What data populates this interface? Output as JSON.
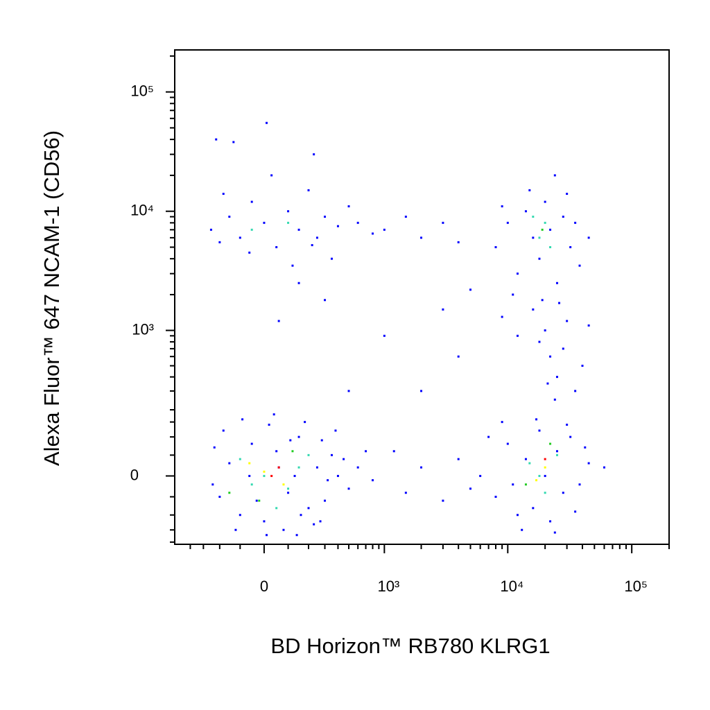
{
  "chart_data": {
    "type": "scatter",
    "xlabel": "BD Horizon™ RB780 KLRG1",
    "ylabel": "Alexa Fluor™ 647 NCAM-1 (CD56)",
    "xscale": "biexponential",
    "yscale": "biexponential",
    "xlim": [
      -550,
      200000
    ],
    "ylim": [
      -210,
      225000
    ],
    "xticks": [
      0,
      {
        "value": 1000,
        "label": "10³"
      },
      {
        "value": 10000,
        "label": "10⁴"
      },
      {
        "value": 100000,
        "label": "10⁵"
      }
    ],
    "yticks": [
      0,
      {
        "value": 1000,
        "label": "10³"
      },
      {
        "value": 10000,
        "label": "10⁴"
      },
      {
        "value": 100000,
        "label": "10⁵"
      }
    ],
    "xminorticks": [
      -400,
      -300,
      -200,
      -100,
      100,
      200,
      300,
      400,
      500,
      600,
      700,
      800,
      900,
      2000,
      3000,
      4000,
      5000,
      6000,
      7000,
      8000,
      9000,
      20000,
      30000,
      40000,
      50000,
      60000,
      70000,
      80000,
      90000,
      200000
    ],
    "yminorticks": [
      -200,
      -150,
      -100,
      -50,
      50,
      100,
      150,
      200,
      300,
      400,
      500,
      600,
      700,
      800,
      900,
      2000,
      3000,
      4000,
      5000,
      6000,
      7000,
      8000,
      9000,
      20000,
      30000,
      40000,
      50000,
      60000,
      70000,
      80000,
      90000,
      200000
    ],
    "series": [
      {
        "color": "#0000ff",
        "x": [
          -200,
          -150,
          -100,
          -50,
          0,
          50,
          100,
          150,
          200,
          250,
          300,
          350,
          400,
          -180,
          -120,
          -60,
          20,
          80,
          130,
          180,
          230,
          280,
          -230,
          -30,
          60,
          110,
          160,
          320,
          450,
          500,
          600,
          800,
          700,
          -90,
          10,
          380,
          -240,
          140,
          270,
          40,
          -250,
          -200,
          -150,
          -100,
          -50,
          0,
          50,
          100,
          150,
          200,
          250,
          300,
          350,
          400,
          500,
          -180,
          -60,
          30,
          120,
          220,
          -220,
          -130,
          10,
          230,
          600,
          800,
          1000,
          1500,
          2000,
          3000,
          4000,
          60,
          150,
          300,
          6000,
          8000,
          10000,
          12000,
          14000,
          16000,
          18000,
          20000,
          22000,
          25000,
          28000,
          32000,
          38000,
          45000,
          9000,
          13000,
          17000,
          24000,
          30000,
          7000,
          11000,
          35000,
          42000,
          5000,
          4000,
          3000,
          2000,
          1500,
          1200,
          60000,
          8000,
          10000,
          12000,
          14000,
          16000,
          18000,
          20000,
          22000,
          25000,
          28000,
          32000,
          38000,
          45000,
          15000,
          24000,
          11000,
          30000,
          35000,
          19000,
          9000,
          20000,
          22000,
          25000,
          18000,
          30000,
          35000,
          28000,
          16000,
          40000,
          24000,
          12000,
          9000,
          45000,
          21000,
          26000,
          2000,
          3000,
          1000,
          5000,
          500,
          4000
        ],
        "values": [
          -50,
          30,
          -100,
          80,
          -120,
          60,
          -40,
          100,
          -80,
          20,
          -60,
          50,
          0,
          120,
          -150,
          0,
          140,
          -150,
          0,
          150,
          -130,
          90,
          70,
          -60,
          20,
          90,
          -100,
          -10,
          40,
          -30,
          20,
          -10,
          60,
          160,
          -170,
          120,
          -20,
          -170,
          -120,
          180,
          7000,
          5500,
          9000,
          6000,
          12000,
          8000,
          5000,
          10000,
          7000,
          15000,
          6000,
          9000,
          4000,
          7500,
          11000,
          14000,
          4500,
          20000,
          3500,
          5200,
          40000,
          38000,
          55000,
          30000,
          8000,
          6500,
          7000,
          9000,
          6000,
          8000,
          5500,
          1200,
          2500,
          1800,
          0,
          -50,
          80,
          -100,
          40,
          -80,
          120,
          0,
          -120,
          60,
          -40,
          100,
          -20,
          30,
          150,
          -150,
          160,
          -160,
          140,
          100,
          -20,
          -90,
          70,
          -30,
          40,
          -60,
          20,
          -40,
          60,
          20,
          5000,
          8000,
          3000,
          10000,
          6000,
          4000,
          12000,
          7000,
          2500,
          9000,
          5000,
          3500,
          6000,
          15000,
          20000,
          2000,
          14000,
          8000,
          1800,
          11000,
          1000,
          600,
          400,
          800,
          1200,
          300,
          700,
          1500,
          500,
          250,
          900,
          1300,
          1100,
          350,
          1700,
          300,
          1500,
          900,
          2200,
          300,
          600
        ]
      },
      {
        "color": "#33d9b0",
        "x": [
          0,
          -100,
          100,
          200,
          50,
          150,
          -50,
          15000,
          20000,
          25000,
          18000,
          18000,
          20000,
          22000,
          16000,
          100,
          -50
        ],
        "values": [
          0,
          40,
          -30,
          50,
          -80,
          20,
          -20,
          30,
          -40,
          50,
          0,
          6000,
          8000,
          5000,
          9000,
          8000,
          7000
        ]
      },
      {
        "color": "#22cc22",
        "x": [
          -20,
          120,
          14000,
          22000,
          19000,
          -150
        ],
        "values": [
          -60,
          60,
          -20,
          80,
          7000,
          -40
        ]
      },
      {
        "color": "#ffff00",
        "x": [
          0,
          80,
          -60,
          20000,
          17000
        ],
        "values": [
          10,
          -20,
          30,
          20,
          -10
        ]
      },
      {
        "color": "#ff0000",
        "x": [
          30,
          60,
          20000
        ],
        "values": [
          0,
          20,
          40
        ]
      }
    ]
  }
}
